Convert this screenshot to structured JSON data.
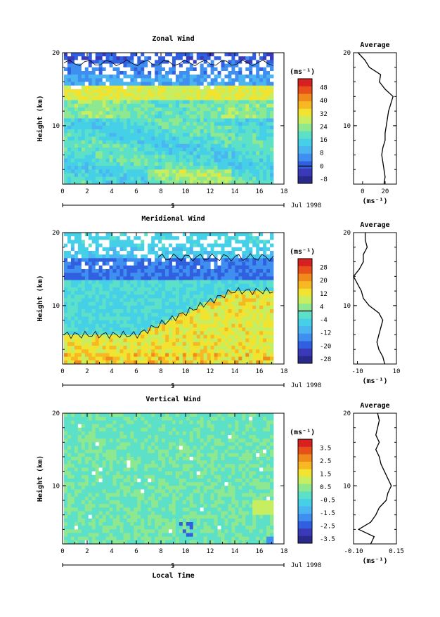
{
  "chart_data": [
    {
      "type": "heatmap",
      "title": "Zonal Wind",
      "ylabel": "Height (km)",
      "x_ticks": [
        "0",
        "2",
        "4",
        "6",
        "8",
        "10",
        "12",
        "14",
        "16",
        "18"
      ],
      "y_ticks": [
        "10",
        "20"
      ],
      "xlim": [
        0,
        18
      ],
      "ylim": [
        2,
        20
      ],
      "date_axis": {
        "tick_label": "5",
        "date_label": "Jul 1998"
      },
      "colorbar": {
        "unit": "(ms⁻¹)",
        "ticks": [
          "48",
          "40",
          "32",
          "24",
          "16",
          "8",
          "0",
          "-8"
        ],
        "colors": [
          "#2a2a8a",
          "#3a3ab8",
          "#3060e0",
          "#3f8ff0",
          "#4ab5f0",
          "#45d0e8",
          "#5de0c8",
          "#8ee890",
          "#c6ee60",
          "#f0e430",
          "#f8b824",
          "#f08a1a",
          "#e8501a",
          "#d82020"
        ],
        "contour_level": "0"
      },
      "profile": {
        "title": "Average",
        "xlabel": "(ms⁻¹)",
        "x_ticks": [
          "0",
          "20"
        ],
        "xlim": [
          -8,
          30
        ],
        "y_ticks": [
          "10",
          "20"
        ],
        "heights": [
          2,
          3,
          4,
          5,
          6,
          7,
          8,
          9,
          10,
          11,
          12,
          13,
          14,
          15,
          16,
          17,
          18,
          19,
          20
        ],
        "values": [
          19,
          20,
          19,
          18,
          17,
          18,
          20,
          20,
          21,
          22,
          23,
          25,
          27,
          20,
          15,
          16,
          6,
          2,
          -4
        ]
      }
    },
    {
      "type": "heatmap",
      "title": "Meridional Wind",
      "ylabel": "Height (km)",
      "x_ticks": [
        "0",
        "2",
        "4",
        "6",
        "8",
        "10",
        "12",
        "14",
        "16",
        "18"
      ],
      "y_ticks": [
        "10",
        "20"
      ],
      "xlim": [
        0,
        18
      ],
      "ylim": [
        2,
        20
      ],
      "date_axis": {
        "tick_label": "5",
        "date_label": "Jul 1998"
      },
      "colorbar": {
        "unit": "(ms⁻¹)",
        "ticks": [
          "28",
          "20",
          "12",
          "4",
          "-4",
          "-12",
          "-20",
          "-28"
        ],
        "colors": [
          "#2a2a8a",
          "#3a3ab8",
          "#3060e0",
          "#3f8ff0",
          "#4ab5f0",
          "#45d0e8",
          "#5de0c8",
          "#8ee890",
          "#c6ee60",
          "#f0e430",
          "#f8b824",
          "#f08a1a",
          "#e8501a",
          "#d82020"
        ],
        "contour_level": "0"
      },
      "profile": {
        "title": "Average",
        "xlabel": "(ms⁻¹)",
        "x_ticks": [
          "-10",
          "10"
        ],
        "xlim": [
          -12,
          10
        ],
        "y_ticks": [
          "10",
          "20"
        ],
        "heights": [
          2,
          3,
          4,
          5,
          6,
          7,
          8,
          9,
          10,
          11,
          12,
          13,
          14,
          15,
          16,
          17,
          18,
          19,
          20
        ],
        "values": [
          4,
          3,
          1,
          0,
          1,
          2,
          3,
          1,
          -4,
          -7,
          -8,
          -10,
          -12,
          -9,
          -7,
          -7,
          -5,
          -6,
          -6
        ]
      }
    },
    {
      "type": "heatmap",
      "title": "Vertical Wind",
      "ylabel": "Height (km)",
      "xlabel": "Local Time",
      "x_ticks": [
        "0",
        "2",
        "4",
        "6",
        "8",
        "10",
        "12",
        "14",
        "16",
        "18"
      ],
      "y_ticks": [
        "10",
        "20"
      ],
      "xlim": [
        0,
        18
      ],
      "ylim": [
        2,
        20
      ],
      "date_axis": {
        "tick_label": "5",
        "date_label": "Jul 1998"
      },
      "colorbar": {
        "unit": "(ms⁻¹)",
        "ticks": [
          "3.5",
          "2.5",
          "1.5",
          "0.5",
          "-0.5",
          "-1.5",
          "-2.5",
          "-3.5"
        ],
        "colors": [
          "#2a2a8a",
          "#3a3ab8",
          "#3060e0",
          "#3f8ff0",
          "#4ab5f0",
          "#45d0e8",
          "#5de0c8",
          "#8ee890",
          "#c6ee60",
          "#f0e430",
          "#f8b824",
          "#f08a1a",
          "#e8501a",
          "#d82020"
        ],
        "contour_level": ""
      },
      "profile": {
        "title": "Average",
        "xlabel": "(ms⁻¹)",
        "x_ticks": [
          "-0.10",
          "0.15"
        ],
        "xlim": [
          -0.1,
          0.15
        ],
        "y_ticks": [
          "10",
          "20"
        ],
        "heights": [
          2,
          3,
          4,
          5,
          6,
          7,
          8,
          9,
          10,
          11,
          12,
          13,
          14,
          15,
          16,
          17,
          18,
          19,
          20
        ],
        "values": [
          0.0,
          0.02,
          -0.07,
          0.0,
          0.03,
          0.05,
          0.09,
          0.1,
          0.12,
          0.1,
          0.08,
          0.06,
          0.05,
          0.03,
          0.05,
          0.03,
          0.04,
          0.05,
          0.04
        ]
      }
    }
  ]
}
